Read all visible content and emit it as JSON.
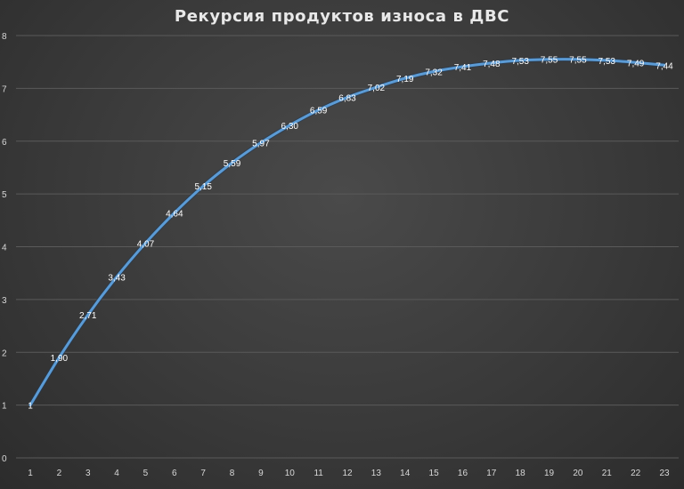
{
  "chart_data": {
    "type": "line",
    "title": "Рекурсия продуктов износа в ДВС",
    "xlabel": "",
    "ylabel": "",
    "categories": [
      "1",
      "2",
      "3",
      "4",
      "5",
      "6",
      "7",
      "8",
      "9",
      "10",
      "11",
      "12",
      "13",
      "14",
      "15",
      "16",
      "17",
      "18",
      "19",
      "20",
      "21",
      "22",
      "23"
    ],
    "values": [
      1,
      1.9,
      2.71,
      3.43,
      4.07,
      4.64,
      5.15,
      5.59,
      5.97,
      6.3,
      6.59,
      6.83,
      7.02,
      7.19,
      7.32,
      7.41,
      7.48,
      7.53,
      7.55,
      7.55,
      7.53,
      7.49,
      7.44
    ],
    "data_labels": [
      "1",
      "1,90",
      "2,71",
      "3,43",
      "4,07",
      "4,64",
      "5,15",
      "5,59",
      "5,97",
      "6,30",
      "6,59",
      "6,83",
      "7,02",
      "7,19",
      "7,32",
      "7,41",
      "7,48",
      "7,53",
      "7,55",
      "7,55",
      "7,53",
      "7,49",
      "7,44"
    ],
    "y_ticks": [
      "0",
      "1",
      "2",
      "3",
      "4",
      "5",
      "6",
      "7",
      "8"
    ],
    "ylim": [
      0,
      8
    ],
    "grid": true,
    "legend": "none",
    "colors": {
      "line": "#5b9bd5",
      "background": "#404040",
      "grid": "#5a5a5a",
      "text": "#d8d8d8"
    }
  }
}
